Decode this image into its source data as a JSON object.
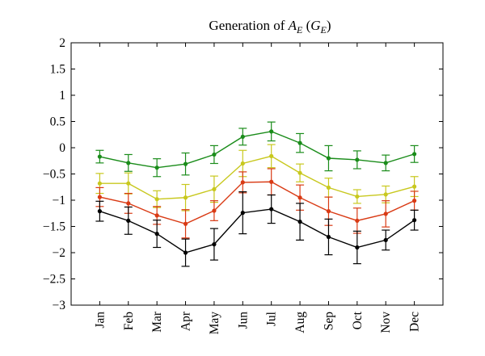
{
  "chart_data": {
    "type": "line",
    "title": "Generation of A_E (G_E)",
    "title_parts": {
      "prefix": "Generation of ",
      "var_main": "A",
      "var_sub": "E",
      "paren_open": " (",
      "paren_main": "G",
      "paren_sub": "E",
      "paren_close": ")"
    },
    "xlabel": "",
    "ylabel": "",
    "categories": [
      "Jan",
      "Feb",
      "Mar",
      "Apr",
      "May",
      "Jun",
      "Jul",
      "Aug",
      "Sep",
      "Oct",
      "Nov",
      "Dec"
    ],
    "ylim": [
      -3,
      2
    ],
    "yticks": [
      -3,
      -2.5,
      -2,
      -1.5,
      -1,
      -0.5,
      0,
      0.5,
      1,
      1.5,
      2
    ],
    "ytick_labels": [
      "−3",
      "−2.5",
      "−2",
      "−1.5",
      "−1",
      "−0.5",
      "0",
      "0.5",
      "1",
      "1.5",
      "2"
    ],
    "grid": false,
    "legend": "none",
    "series": [
      {
        "color": "#1a8c1a",
        "values": [
          -0.17,
          -0.29,
          -0.38,
          -0.31,
          -0.13,
          0.21,
          0.31,
          0.09,
          -0.2,
          -0.23,
          -0.29,
          -0.12
        ],
        "errors": [
          0.12,
          0.16,
          0.17,
          0.21,
          0.17,
          0.16,
          0.18,
          0.18,
          0.24,
          0.17,
          0.15,
          0.16
        ]
      },
      {
        "color": "#c8c81e",
        "values": [
          -0.68,
          -0.68,
          -0.98,
          -0.95,
          -0.79,
          -0.3,
          -0.16,
          -0.48,
          -0.76,
          -0.93,
          -0.89,
          -0.74
        ],
        "errors": [
          0.19,
          0.2,
          0.16,
          0.25,
          0.25,
          0.25,
          0.22,
          0.17,
          0.18,
          0.13,
          0.16,
          0.19
        ]
      },
      {
        "color": "#d93a14",
        "values": [
          -0.94,
          -1.06,
          -1.29,
          -1.45,
          -1.2,
          -0.66,
          -0.65,
          -0.95,
          -1.21,
          -1.39,
          -1.26,
          -1.01
        ],
        "errors": [
          0.18,
          0.19,
          0.17,
          0.27,
          0.19,
          0.2,
          0.25,
          0.24,
          0.27,
          0.24,
          0.25,
          0.18
        ]
      },
      {
        "color": "#000000",
        "values": [
          -1.21,
          -1.39,
          -1.64,
          -2.0,
          -1.84,
          -1.24,
          -1.17,
          -1.41,
          -1.7,
          -1.9,
          -1.76,
          -1.38
        ],
        "errors": [
          0.19,
          0.26,
          0.26,
          0.26,
          0.3,
          0.4,
          0.27,
          0.35,
          0.34,
          0.31,
          0.19,
          0.19
        ]
      }
    ]
  }
}
